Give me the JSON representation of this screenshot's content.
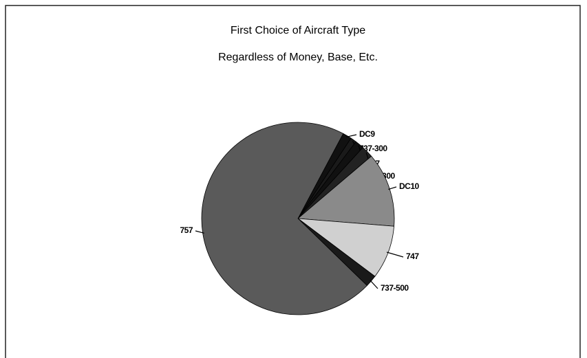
{
  "chart_data": {
    "type": "pie",
    "title": "First Choice of Aircraft Type",
    "subtitle": "Regardless of Money, Base, Etc.",
    "categories": [
      "DC9",
      "737-300",
      "727",
      "A300",
      "DC10",
      "747",
      "737-500",
      "757"
    ],
    "values": [
      1.5,
      1,
      1.5,
      2,
      12.5,
      9,
      2,
      70.5
    ],
    "colors": [
      "#111111",
      "#1a1a1a",
      "#111111",
      "#222222",
      "#8a8a8a",
      "#d0d0d0",
      "#1a1a1a",
      "#5a5a5a"
    ]
  }
}
